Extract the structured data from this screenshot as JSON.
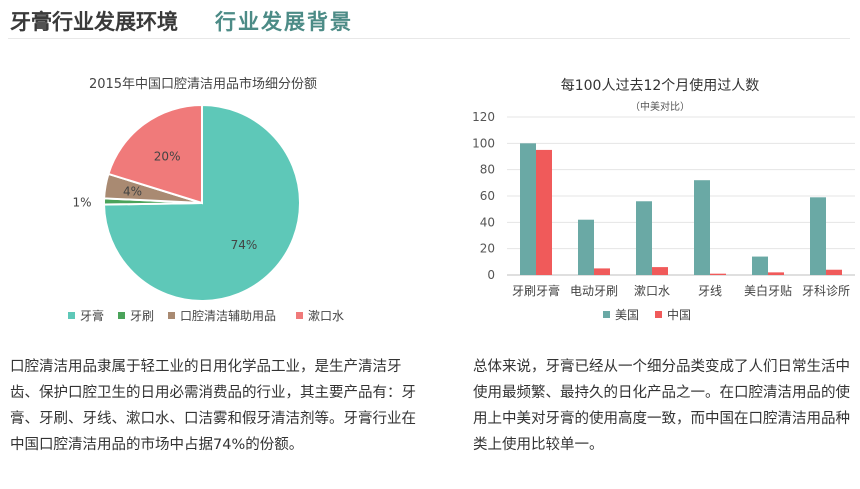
{
  "header": {
    "title": "牙膏行业发展环境",
    "subtitle": "行业发展背景"
  },
  "pie_chart": {
    "title": "2015年中国口腔清洁用品市场细分份额"
  },
  "bar_chart": {
    "title": "每100人过去12个月使用过人数",
    "subtitle": "（中美对比）"
  },
  "chart_data": [
    {
      "type": "pie",
      "title": "2015年中国口腔清洁用品市场细分份额",
      "categories": [
        "牙膏",
        "牙刷",
        "口腔清洁辅助用品",
        "漱口水"
      ],
      "values": [
        74,
        1,
        4,
        20
      ],
      "labels": [
        "74%",
        "1%",
        "4%",
        "20%"
      ],
      "colors": [
        "#5ec8b8",
        "#4aa35a",
        "#a98a72",
        "#f07a7a"
      ],
      "legend": "bottom"
    },
    {
      "type": "bar",
      "title": "每100人过去12个月使用过人数",
      "subtitle": "（中美对比）",
      "categories": [
        "牙刷牙膏",
        "电动牙刷",
        "漱口水",
        "牙线",
        "美白牙贴",
        "牙科诊所"
      ],
      "series": [
        {
          "name": "美国",
          "values": [
            100,
            42,
            56,
            72,
            14,
            59
          ],
          "color": "#6aa9a5"
        },
        {
          "name": "中国",
          "values": [
            95,
            5,
            6,
            1,
            2,
            4
          ],
          "color": "#f05a5a"
        }
      ],
      "ylim": [
        0,
        120
      ],
      "yticks": [
        "0",
        "20",
        "40",
        "60",
        "80",
        "100",
        "120"
      ],
      "grid": true,
      "legend": "bottom"
    }
  ],
  "paragraphs": {
    "left": "口腔清洁用品隶属于轻工业的日用化学品工业，是生产清洁牙齿、保护口腔卫生的日用必需消费品的行业，其主要产品有：牙膏、牙刷、牙线、漱口水、口洁雾和假牙清洁剂等。牙膏行业在中国口腔清洁用品的市场中占据74%的份额。",
    "right": "总体来说，牙膏已经从一个细分品类变成了人们日常生活中使用最频繁、最持久的日化产品之一。在口腔清洁用品的使用上中美对牙膏的使用高度一致，而中国在口腔清洁用品种类上使用比较单一。"
  }
}
